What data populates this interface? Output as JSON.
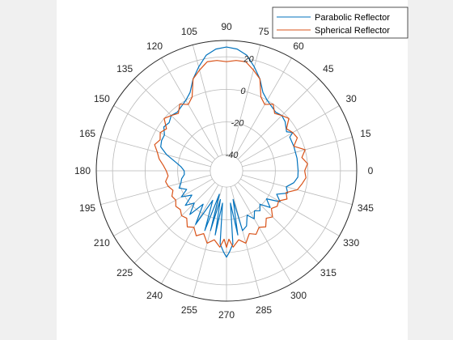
{
  "chart_data": {
    "type": "line",
    "subtype": "polar",
    "title": "",
    "theta_unit": "degrees",
    "theta_ticks": [
      0,
      15,
      30,
      45,
      60,
      75,
      90,
      105,
      120,
      135,
      150,
      165,
      180,
      195,
      210,
      225,
      240,
      255,
      270,
      285,
      300,
      315,
      330,
      345
    ],
    "r_ticks": [
      -40,
      -20,
      0,
      20
    ],
    "r_tick_angle_deg": 80,
    "rlim": [
      -50,
      30
    ],
    "grid": true,
    "legend_placement": "top-right",
    "series": [
      {
        "name": "Parabolic Reflector",
        "color": "#0072bd",
        "points": [
          [
            0,
            -6
          ],
          [
            10,
            -6
          ],
          [
            20,
            -6
          ],
          [
            28,
            -6
          ],
          [
            30,
            -3
          ],
          [
            33,
            -6
          ],
          [
            40,
            -3
          ],
          [
            45,
            -2
          ],
          [
            50,
            -3
          ],
          [
            60,
            0
          ],
          [
            65,
            3
          ],
          [
            70,
            10
          ],
          [
            75,
            16
          ],
          [
            80,
            22
          ],
          [
            85,
            25
          ],
          [
            90,
            26
          ],
          [
            95,
            25
          ],
          [
            100,
            22
          ],
          [
            105,
            16
          ],
          [
            110,
            10
          ],
          [
            115,
            3
          ],
          [
            120,
            0
          ],
          [
            130,
            -3
          ],
          [
            135,
            -2
          ],
          [
            140,
            -4
          ],
          [
            145,
            -3
          ],
          [
            150,
            -6
          ],
          [
            155,
            -6
          ],
          [
            160,
            -7
          ],
          [
            165,
            -12
          ],
          [
            170,
            -18
          ],
          [
            175,
            -22
          ],
          [
            180,
            -24
          ],
          [
            185,
            -24
          ],
          [
            190,
            -22
          ],
          [
            195,
            -21
          ],
          [
            200,
            -19
          ],
          [
            205,
            -23
          ],
          [
            210,
            -18
          ],
          [
            215,
            -24
          ],
          [
            220,
            -17
          ],
          [
            225,
            -22
          ],
          [
            230,
            -15
          ],
          [
            235,
            -25
          ],
          [
            240,
            -12
          ],
          [
            245,
            -30
          ],
          [
            250,
            -11
          ],
          [
            253,
            -35
          ],
          [
            255,
            -12
          ],
          [
            258,
            -32
          ],
          [
            260,
            -10
          ],
          [
            263,
            -30
          ],
          [
            265,
            -5
          ],
          [
            268,
            0
          ],
          [
            270,
            3
          ],
          [
            272,
            0
          ],
          [
            275,
            -5
          ],
          [
            277,
            -30
          ],
          [
            280,
            -10
          ],
          [
            283,
            -32
          ],
          [
            285,
            -12
          ],
          [
            290,
            -14
          ],
          [
            295,
            -20
          ],
          [
            300,
            -16
          ],
          [
            305,
            -20
          ],
          [
            310,
            -18
          ],
          [
            315,
            -21
          ],
          [
            320,
            -15
          ],
          [
            325,
            -20
          ],
          [
            330,
            -12
          ],
          [
            335,
            -16
          ],
          [
            340,
            -10
          ],
          [
            345,
            -12
          ],
          [
            350,
            -8
          ],
          [
            355,
            -6
          ],
          [
            360,
            -6
          ]
        ]
      },
      {
        "name": "Spherical Reflector",
        "color": "#d95319",
        "points": [
          [
            0,
            -2
          ],
          [
            5,
            0
          ],
          [
            10,
            -3
          ],
          [
            15,
            0
          ],
          [
            20,
            -6
          ],
          [
            25,
            -2
          ],
          [
            30,
            -3
          ],
          [
            35,
            -5
          ],
          [
            40,
            0
          ],
          [
            45,
            -2
          ],
          [
            50,
            -4
          ],
          [
            55,
            0
          ],
          [
            60,
            -3
          ],
          [
            65,
            0
          ],
          [
            70,
            10
          ],
          [
            75,
            14
          ],
          [
            80,
            18
          ],
          [
            85,
            18
          ],
          [
            90,
            17
          ],
          [
            95,
            18
          ],
          [
            100,
            18
          ],
          [
            105,
            14
          ],
          [
            110,
            10
          ],
          [
            115,
            0
          ],
          [
            120,
            -3
          ],
          [
            125,
            0
          ],
          [
            130,
            -4
          ],
          [
            135,
            -2
          ],
          [
            140,
            0
          ],
          [
            145,
            -5
          ],
          [
            150,
            -3
          ],
          [
            155,
            -5
          ],
          [
            160,
            -3
          ],
          [
            165,
            -6
          ],
          [
            170,
            -8
          ],
          [
            175,
            -11
          ],
          [
            180,
            -13
          ],
          [
            185,
            -14
          ],
          [
            190,
            -12
          ],
          [
            195,
            -13
          ],
          [
            200,
            -15
          ],
          [
            205,
            -13
          ],
          [
            210,
            -14
          ],
          [
            215,
            -12
          ],
          [
            220,
            -13
          ],
          [
            225,
            -11
          ],
          [
            230,
            -12
          ],
          [
            235,
            -8
          ],
          [
            240,
            -10
          ],
          [
            245,
            -6
          ],
          [
            250,
            -9
          ],
          [
            255,
            -4
          ],
          [
            260,
            -7
          ],
          [
            265,
            -3
          ],
          [
            268,
            -8
          ],
          [
            270,
            -3
          ],
          [
            272,
            -8
          ],
          [
            275,
            -3
          ],
          [
            280,
            -7
          ],
          [
            285,
            -4
          ],
          [
            290,
            -9
          ],
          [
            295,
            -7
          ],
          [
            300,
            -10
          ],
          [
            305,
            -8
          ],
          [
            310,
            -12
          ],
          [
            315,
            -10
          ],
          [
            320,
            -14
          ],
          [
            325,
            -12
          ],
          [
            330,
            -13
          ],
          [
            335,
            -9
          ],
          [
            340,
            -11
          ],
          [
            345,
            -5
          ],
          [
            350,
            -3
          ],
          [
            355,
            -1
          ],
          [
            360,
            -2
          ]
        ]
      }
    ]
  }
}
